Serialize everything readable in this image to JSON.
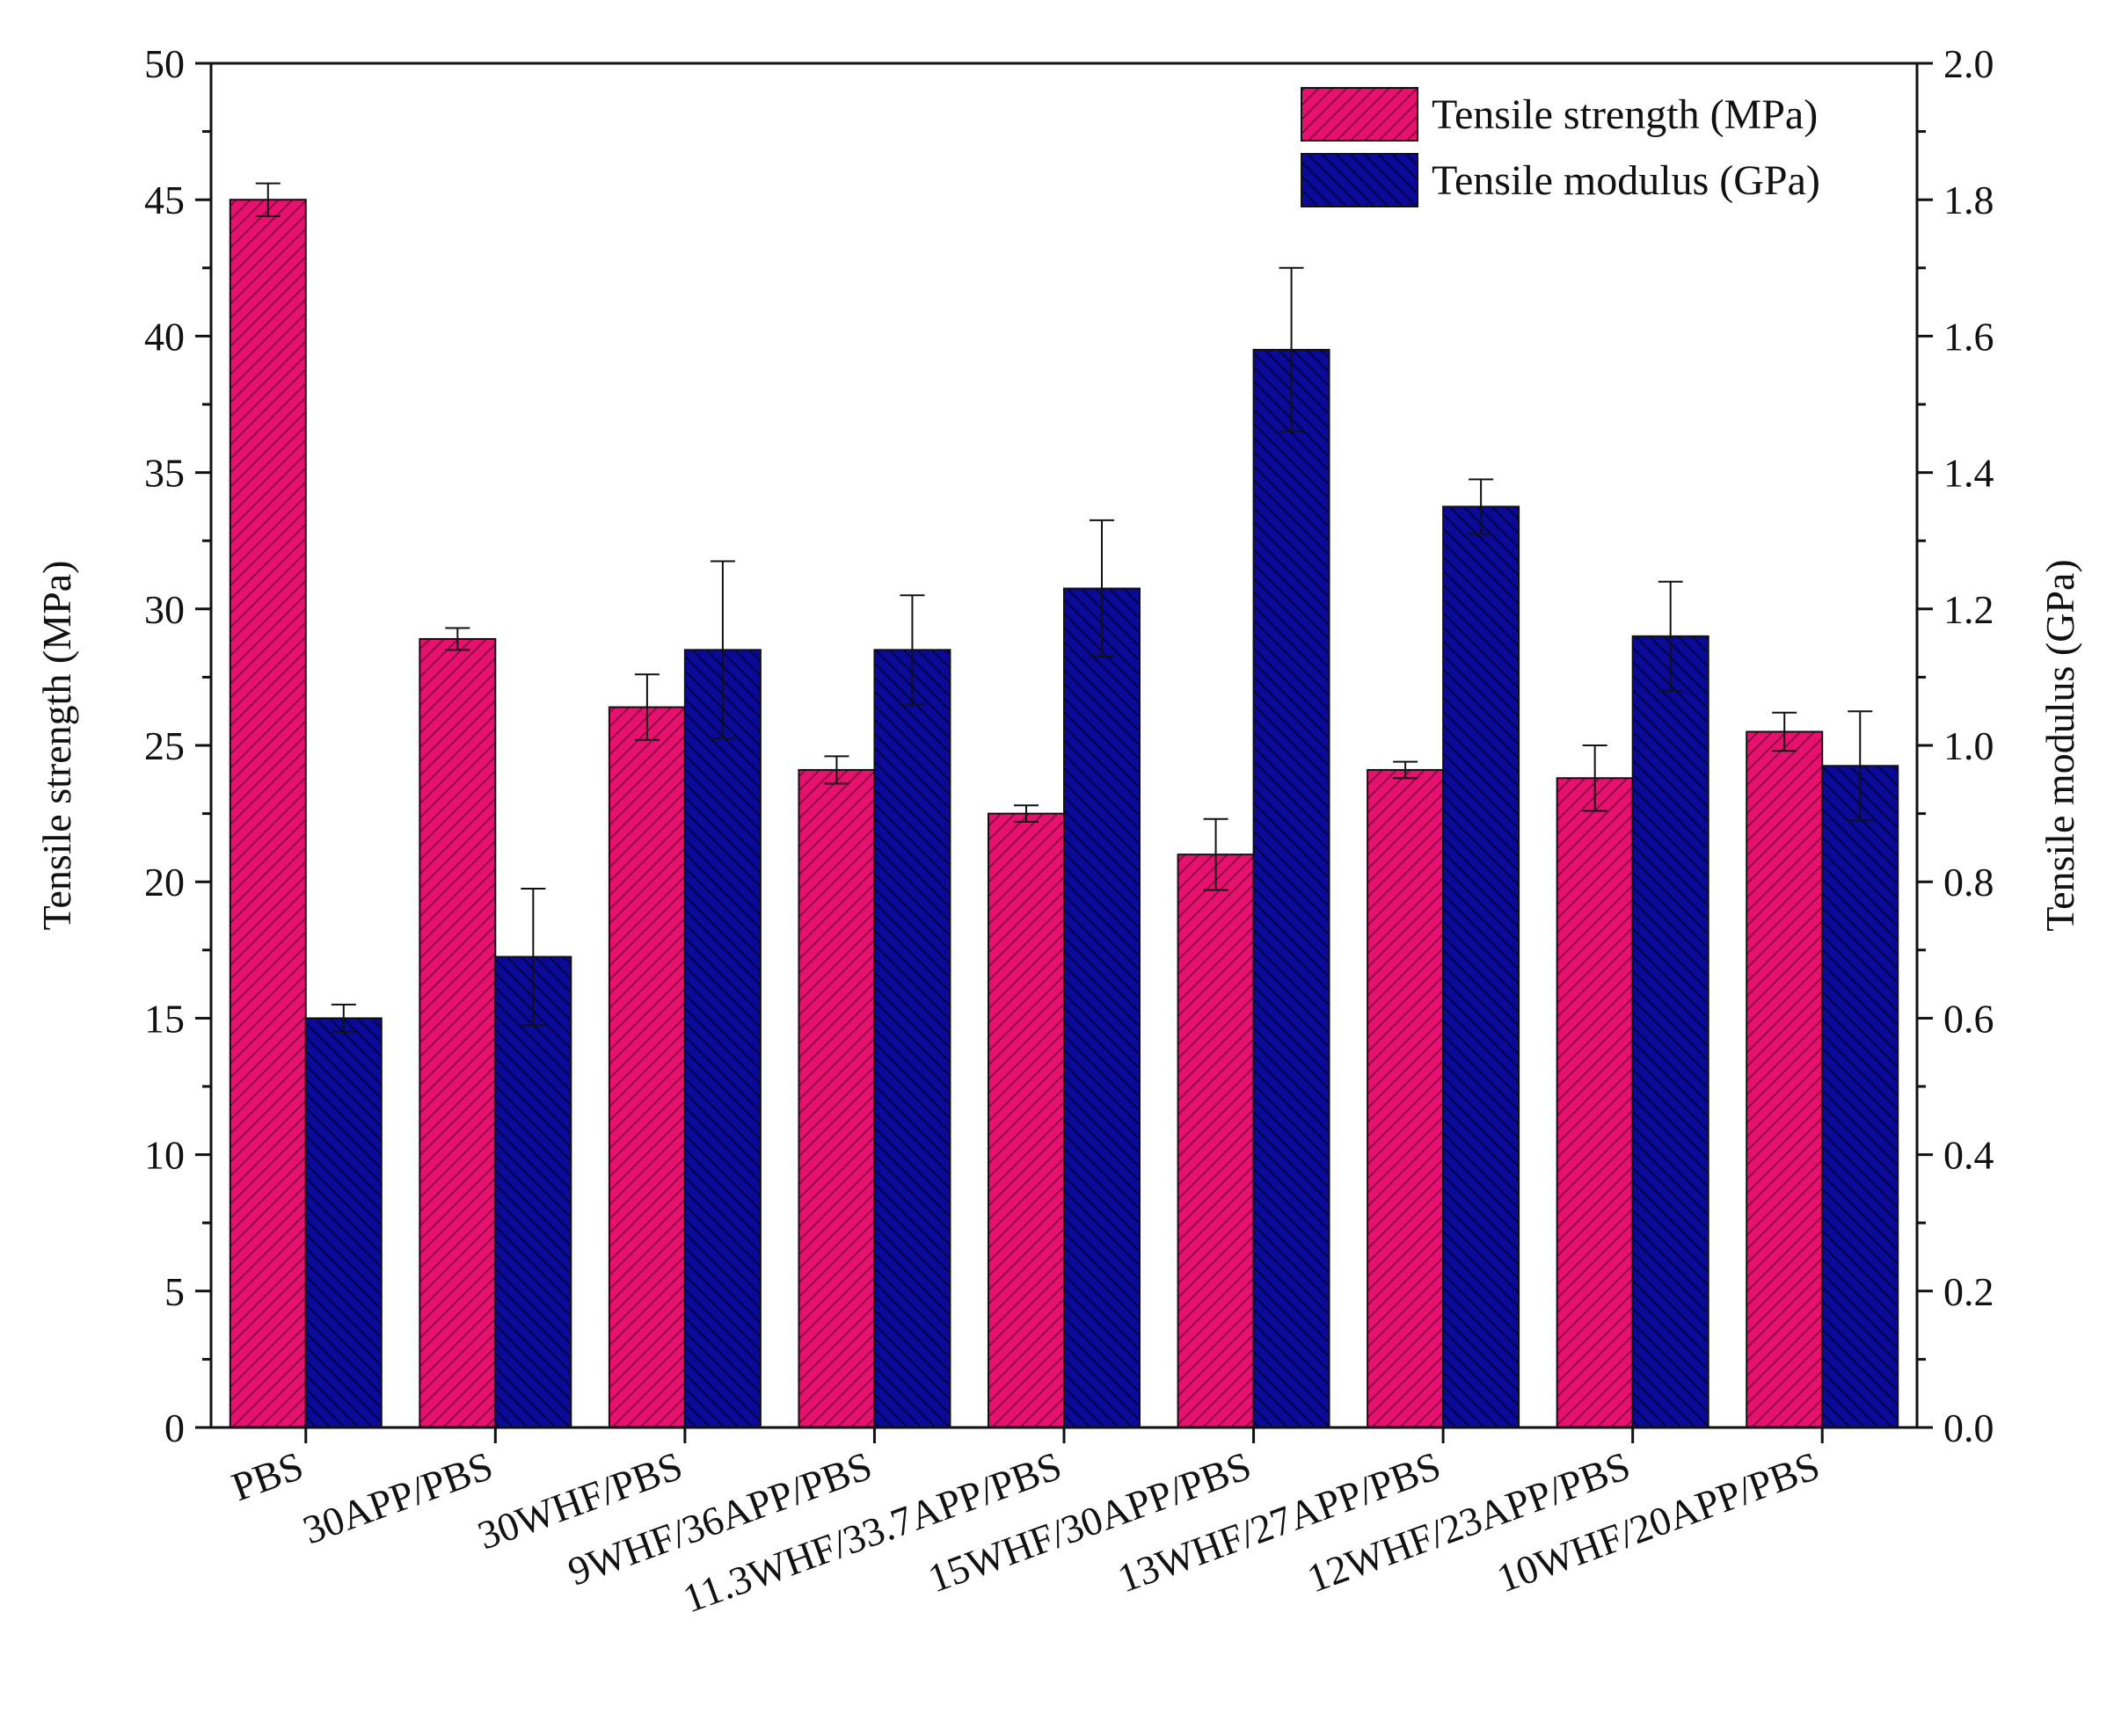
{
  "chart_data": {
    "type": "bar",
    "categories": [
      "PBS",
      "30APP/PBS",
      "30WHF/PBS",
      "9WHF/36APP/PBS",
      "11.3WHF/33.7APP/PBS",
      "15WHF/30APP/PBS",
      "13WHF/27APP/PBS",
      "12WHF/23APP/PBS",
      "10WHF/20APP/PBS"
    ],
    "series": [
      {
        "name": "Tensile strength (MPa)",
        "axis": "left",
        "color": "#e8106f",
        "hatch": "#7a0a3a",
        "values": [
          45.0,
          28.9,
          26.4,
          24.1,
          22.5,
          21.0,
          24.1,
          23.8,
          25.5
        ],
        "errors": [
          0.6,
          0.4,
          1.2,
          0.5,
          0.3,
          1.3,
          0.3,
          1.2,
          0.7
        ]
      },
      {
        "name": "Tensile modulus (GPa)",
        "axis": "right",
        "color": "#0a0a96",
        "hatch": "#000033",
        "values": [
          0.6,
          0.69,
          1.14,
          1.14,
          1.23,
          1.58,
          1.35,
          1.16,
          0.97
        ],
        "errors": [
          0.02,
          0.1,
          0.13,
          0.08,
          0.1,
          0.12,
          0.04,
          0.08,
          0.08
        ]
      }
    ],
    "ylabel": "Tensile strength (MPa)",
    "y2label": "Tensile modulus (GPa)",
    "ylim": [
      0,
      50
    ],
    "y2lim": [
      0,
      2.0
    ],
    "yticks": [
      "0",
      "5",
      "10",
      "15",
      "20",
      "25",
      "30",
      "35",
      "40",
      "45",
      "50"
    ],
    "y2ticks": [
      "0.0",
      "0.2",
      "0.4",
      "0.6",
      "0.8",
      "1.0",
      "1.2",
      "1.4",
      "1.6",
      "1.8",
      "2.0"
    ],
    "legend_position": "top-right",
    "grid": false
  }
}
